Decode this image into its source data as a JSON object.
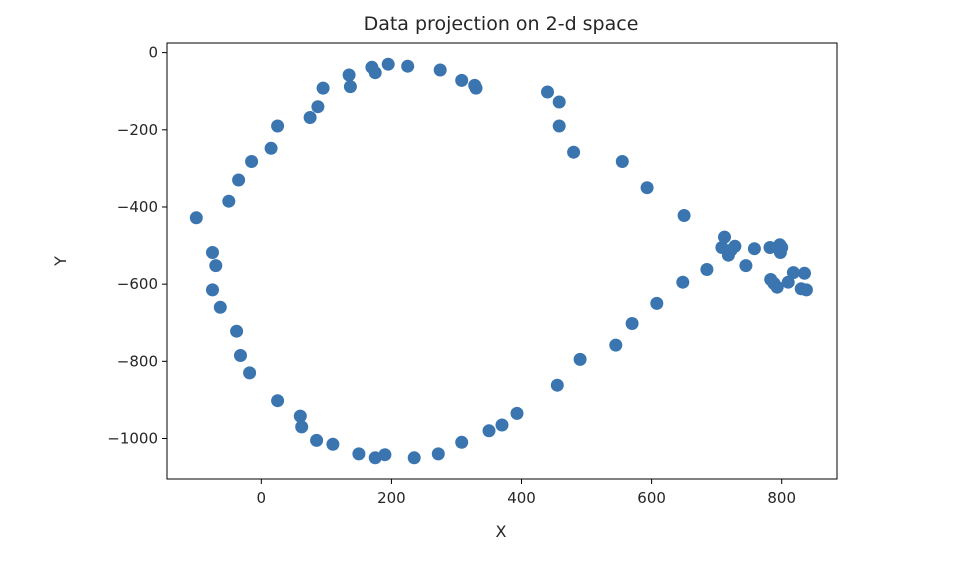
{
  "chart_data": {
    "type": "scatter",
    "title": "Data projection on 2-d space",
    "xlabel": "X",
    "ylabel": "Y",
    "xlim": [
      -145,
      885
    ],
    "ylim": [
      -1105,
      25
    ],
    "xticks": [
      0,
      200,
      400,
      600,
      800
    ],
    "yticks": [
      0,
      -200,
      -400,
      -600,
      -800,
      -1000
    ],
    "grid": false,
    "marker_color": "#3a75b0",
    "series": [
      {
        "x": [
          -100,
          -75,
          -70,
          -75,
          -63,
          -38,
          -32,
          -18,
          -50,
          -35,
          -15,
          15,
          25,
          75,
          87,
          95,
          135,
          137,
          170,
          175,
          195,
          225,
          275,
          308,
          328,
          330,
          440,
          458,
          458,
          480,
          555,
          593,
          650,
          25,
          60,
          62,
          85,
          110,
          150,
          175,
          190,
          235,
          272,
          308,
          350,
          370,
          393,
          455,
          490,
          545,
          570,
          608,
          648,
          685,
          708,
          712,
          718,
          722,
          728,
          745,
          758,
          782,
          788,
          793,
          797,
          798,
          800,
          810,
          818,
          830,
          835,
          838,
          783
        ],
        "y": [
          -428,
          -518,
          -552,
          -615,
          -660,
          -722,
          -785,
          -830,
          -385,
          -330,
          -282,
          -248,
          -190,
          -168,
          -140,
          -92,
          -58,
          -88,
          -38,
          -52,
          -30,
          -35,
          -45,
          -72,
          -85,
          -92,
          -102,
          -128,
          -190,
          -258,
          -282,
          -350,
          -422,
          -902,
          -942,
          -970,
          -1005,
          -1015,
          -1040,
          -1050,
          -1042,
          -1050,
          -1040,
          -1010,
          -980,
          -965,
          -935,
          -862,
          -795,
          -758,
          -702,
          -650,
          -595,
          -562,
          -505,
          -478,
          -525,
          -512,
          -502,
          -552,
          -508,
          -505,
          -598,
          -608,
          -498,
          -518,
          -505,
          -595,
          -570,
          -612,
          -572,
          -615,
          -588
        ]
      }
    ]
  }
}
